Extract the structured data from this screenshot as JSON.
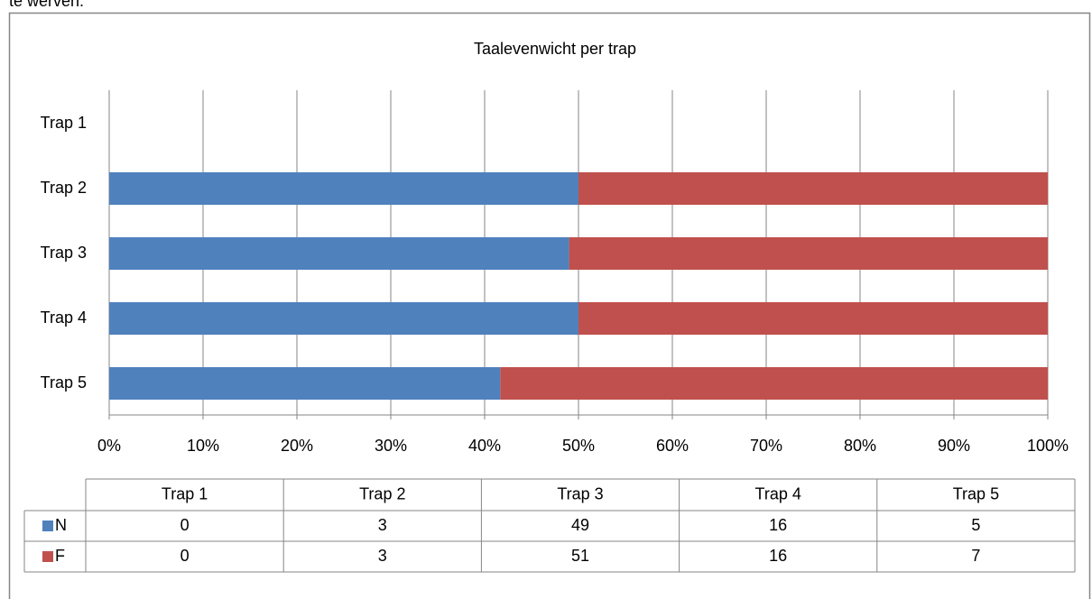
{
  "header_text": "te werven.",
  "chart_data": {
    "type": "bar",
    "orientation": "horizontal",
    "stacking": "percent",
    "title": "Taalevenwicht per trap",
    "categories": [
      "Trap 5",
      "Trap 4",
      "Trap 3",
      "Trap 2",
      "Trap 1"
    ],
    "series": [
      {
        "name": "N",
        "color": "#4f81bd",
        "values": [
          5,
          16,
          49,
          3,
          0
        ]
      },
      {
        "name": "F",
        "color": "#c0504d",
        "values": [
          7,
          16,
          51,
          3,
          0
        ]
      }
    ],
    "xlim": [
      0,
      100
    ],
    "xticks": [
      {
        "value": 0,
        "label": "0%"
      },
      {
        "value": 10,
        "label": "10%"
      },
      {
        "value": 20,
        "label": "20%"
      },
      {
        "value": 30,
        "label": "30%"
      },
      {
        "value": 40,
        "label": "40%"
      },
      {
        "value": 50,
        "label": "50%"
      },
      {
        "value": 60,
        "label": "60%"
      },
      {
        "value": 70,
        "label": "70%"
      },
      {
        "value": 80,
        "label": "80%"
      },
      {
        "value": 90,
        "label": "90%"
      },
      {
        "value": 100,
        "label": "100%"
      }
    ],
    "grid": true,
    "data_table": true
  }
}
